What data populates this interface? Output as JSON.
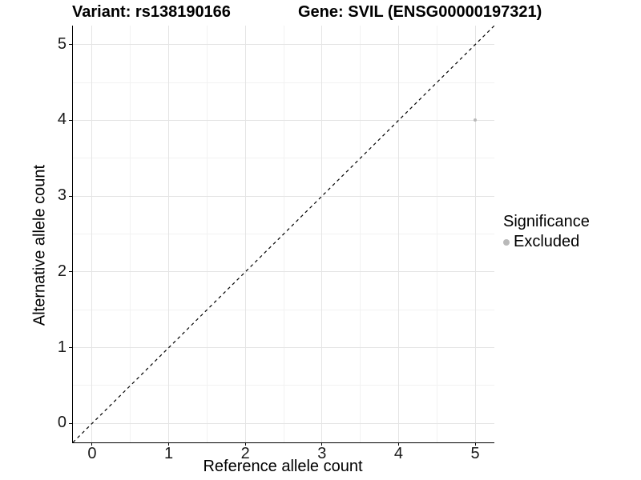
{
  "figure": {
    "title_left": "Variant: rs138190166",
    "title_right": "Gene: SVIL (ENSG00000197321)"
  },
  "chart_data": {
    "type": "scatter",
    "title_left": "Variant: rs138190166",
    "title_right": "Gene: SVIL (ENSG00000197321)",
    "xlabel": "Reference allele count",
    "ylabel": "Alternative allele count",
    "xlim": [
      -0.25,
      5.25
    ],
    "ylim": [
      -0.25,
      5.25
    ],
    "x_ticks": [
      0,
      1,
      2,
      3,
      4,
      5
    ],
    "y_ticks": [
      0,
      1,
      2,
      3,
      4,
      5
    ],
    "x_minor_ticks": [
      0.5,
      1.5,
      2.5,
      3.5,
      4.5
    ],
    "y_minor_ticks": [
      0.5,
      1.5,
      2.5,
      3.5,
      4.5
    ],
    "grid": true,
    "reference_line": {
      "slope": 1,
      "intercept": 0,
      "style": "dashed",
      "color": "#000000"
    },
    "series": [
      {
        "name": "Excluded",
        "color": "#b9b9b9",
        "points": [
          {
            "x": 5,
            "y": 4
          }
        ]
      }
    ],
    "legend": {
      "title": "Significance",
      "position": "right",
      "entries": [
        {
          "label": "Excluded",
          "color": "#b9b9b9"
        }
      ]
    }
  },
  "colors": {
    "background": "#ffffff",
    "grid_major": "#e4e4e4",
    "grid_minor": "#f2f2f2",
    "axis_line": "#000000",
    "tick_text": "#1a1a1a",
    "point": "#b9b9b9"
  }
}
